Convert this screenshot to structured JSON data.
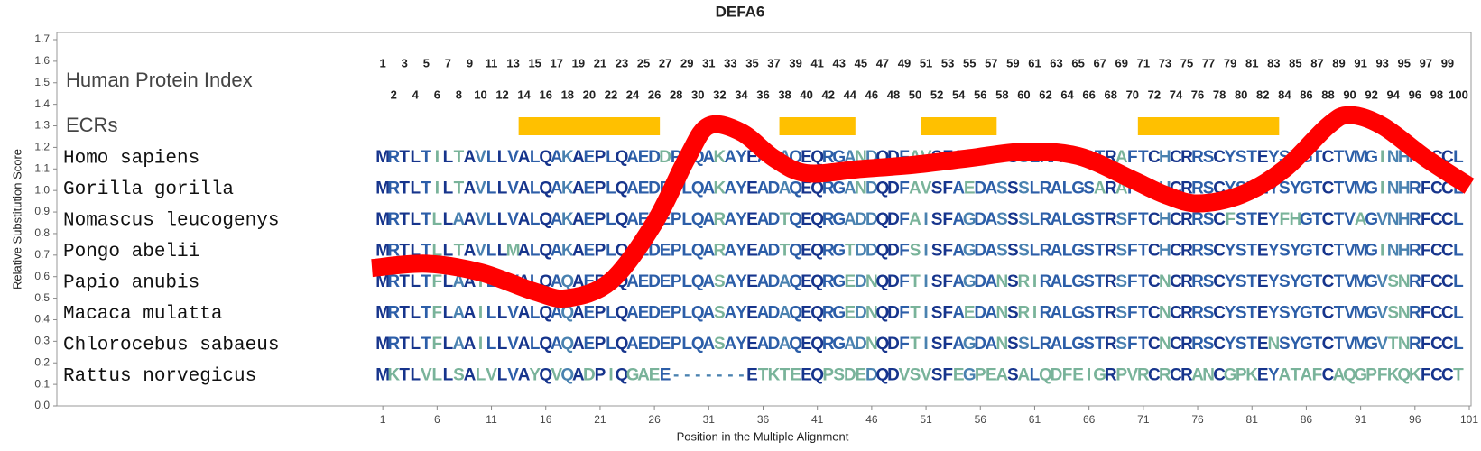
{
  "chart_data": {
    "type": "alignment",
    "title": "DEFA6",
    "xlabel": "Position in the Multiple Alignment",
    "ylabel": "Relative Substitution Score",
    "xlim": [
      -29,
      101
    ],
    "xticks": [
      1,
      6,
      11,
      16,
      21,
      26,
      31,
      36,
      41,
      46,
      51,
      56,
      61,
      66,
      71,
      76,
      81,
      86,
      91,
      96,
      101
    ],
    "ylim": [
      0,
      1.7
    ],
    "yticks": [
      {
        "value": 0,
        "label": "0.0"
      },
      0.1,
      0.2,
      0.3,
      0.4,
      0.5,
      0.6,
      0.7,
      0.8,
      0.9,
      {
        "value": 1,
        "label": "1.0"
      },
      1.1,
      1.2,
      1.3,
      1.4,
      1.5,
      1.6,
      1.7
    ],
    "series": [
      {
        "color": "#ff0000",
        "x": [
          0,
          5,
          10,
          15,
          18,
          22,
          26,
          29,
          31,
          34,
          37,
          40,
          45,
          50,
          55,
          60,
          65,
          70,
          73,
          76,
          80,
          84,
          88,
          90,
          93,
          97,
          101
        ],
        "values": [
          0.64,
          0.66,
          0.62,
          0.53,
          0.5,
          0.58,
          0.85,
          1.15,
          1.3,
          1.27,
          1.15,
          1.08,
          1.1,
          1.12,
          1.15,
          1.18,
          1.16,
          1.05,
          0.98,
          0.94,
          0.98,
          1.1,
          1.3,
          1.35,
          1.3,
          1.15,
          1.02
        ]
      }
    ],
    "index_label": "Human Protein Index",
    "human_protein_index": [
      1,
      2,
      3,
      4,
      5,
      6,
      7,
      8,
      9,
      10,
      11,
      12,
      13,
      14,
      15,
      16,
      17,
      18,
      19,
      20,
      21,
      22,
      23,
      24,
      25,
      26,
      27,
      28,
      29,
      30,
      31,
      32,
      33,
      34,
      35,
      36,
      37,
      38,
      39,
      40,
      41,
      42,
      43,
      44,
      45,
      46,
      47,
      48,
      49,
      50,
      51,
      52,
      53,
      54,
      55,
      56,
      57,
      58,
      59,
      60,
      61,
      62,
      63,
      64,
      65,
      66,
      67,
      68,
      69,
      70,
      71,
      72,
      73,
      74,
      75,
      76,
      77,
      78,
      79,
      80,
      81,
      82,
      83,
      84,
      85,
      86,
      87,
      88,
      89,
      90,
      91,
      92,
      93,
      94,
      95,
      96,
      97,
      98,
      99,
      100
    ],
    "ecr_label": "ECRs",
    "ecr_color": "#ffc000",
    "ecrs": [
      [
        14,
        26
      ],
      [
        38,
        44
      ],
      [
        51,
        57
      ],
      [
        71,
        83
      ]
    ],
    "residue_colors": [
      "#16348c",
      "#2c5ea8",
      "#4a82b0",
      "#79b39a"
    ],
    "alignment": [
      {
        "species": "Homo sapiens",
        "sequence": "MRTLTILTAVLLVALQAKAEPLQAEDDPLQAKAYEADAQEQRGANDQDFAVSFAEDASSSLRALGSTRAFTCHCRRSCYSTEYSYGTCTVMGINHRFCCL"
      },
      {
        "species": "Gorilla gorilla",
        "sequence": "MRTLTILTAVLLVALQAKAEPLQAEDEPLQAKAYEADAQEQRGANDQDFAVSFAEDASSSLRALGSARAFTCHCRRSCYSTEYSYGTCTVMGINHRFCCL"
      },
      {
        "species": "Nomascus leucogenys",
        "sequence": "MRTLTLLAAVLLVALQAKAEPLQAEDEPLQARAYEADTQEQRGADDQDFAISFAGDASSSLRALGSTRSFTCHCRRSCFSTEYFHGTCTVAGVNHRFCCL"
      },
      {
        "species": "Pongo abelii",
        "sequence": "MRTLTLLTAVLLMALQAKAEPLQAEDEPLQARAYEADTQEQRGTDDQDFSISFAGDASSSLRALGSTRSFTCHCRRSCYSTEYSYGTCTVMGINHRFCCL"
      },
      {
        "species": "Papio anubis",
        "sequence": "MRTLTFLAAILLVALQAQAEPLQAEDEPLQASAYEADAQEQRGEDNQDFTISFAGDANSRIRALGSTRSFTCNCRRSCYSTEYSYGTCTVMGVSNRFCCL"
      },
      {
        "species": "Macaca mulatta",
        "sequence": "MRTLTFLAAILLVALQAQAEPLQAEDEPLQASAYEADAQEQRGEDNQDFTISFAEDANSRIRALGSTRSFTCNCRRSCYSTEYSYGTCTVMGVSNRFCCL"
      },
      {
        "species": "Chlorocebus sabaeus",
        "sequence": "MRTLTFLAAILLVALQAQAEPLQAEDEPLQASAYEADAQEQRGADNQDFTISFAGDANSSLRALGSTRSFTCNCRRSCYSTENSYGTCTVMGVTNRFCCL"
      },
      {
        "species": "Rattus norvegicus",
        "sequence": "MKTLVLLSALVLVAYQVQADPIQGAEE-------ETKTEEQPSDEDQDVSVSFEGPEASALQDFEIGRPVRCRCRANCGPKEYATAFCAQGPFKQKFCCT"
      }
    ]
  }
}
